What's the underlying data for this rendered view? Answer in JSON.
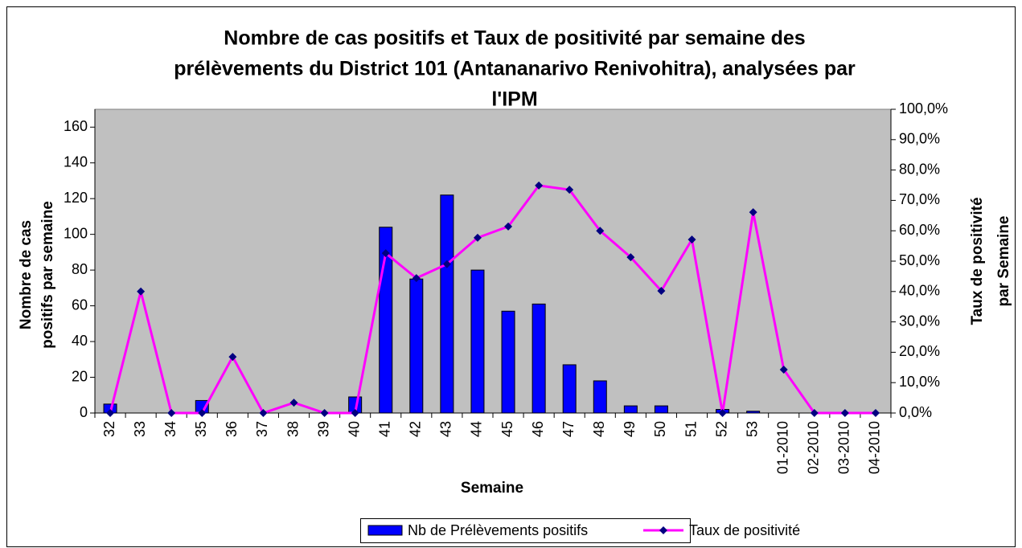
{
  "chart_data": {
    "type": "bar_line",
    "title": [
      "Nombre de cas positifs et Taux de positivité par semaine des",
      "prélèvements du District 101 (Antananarivo Renivohitra), analysées par",
      "l'IPM"
    ],
    "x_label": "Semaine",
    "y_label": [
      "Nombre de cas",
      "positifs par semaine"
    ],
    "y2_label": [
      "Taux de positivité",
      "par Semaine"
    ],
    "categories": [
      "32",
      "33",
      "34",
      "35",
      "36",
      "37",
      "38",
      "39",
      "40",
      "41",
      "42",
      "43",
      "44",
      "45",
      "46",
      "47",
      "48",
      "49",
      "50",
      "51",
      "52",
      "53",
      "01-2010",
      "02-2010",
      "03-2010",
      "04-2010"
    ],
    "series": [
      {
        "name": "Nb de Prélèvements positifs",
        "type": "bar",
        "color": "#0000ff",
        "values": [
          5,
          0,
          0,
          7,
          0,
          0,
          0,
          0,
          9,
          104,
          75,
          122,
          80,
          57,
          61,
          27,
          18,
          4,
          4,
          0,
          2,
          1,
          0,
          0,
          0,
          0
        ]
      },
      {
        "name": "Taux de positivité",
        "type": "line",
        "color": "#ff00ff",
        "marker_color": "#000080",
        "axis": "y2",
        "values": [
          0,
          40,
          0,
          0,
          18.5,
          0,
          3.4,
          0,
          0,
          52.6,
          44.4,
          49,
          57.7,
          61.4,
          74.9,
          73.5,
          60,
          51.3,
          40.2,
          57.1,
          0,
          66.1,
          14.3,
          0,
          0,
          0
        ]
      }
    ],
    "ylim": [
      0,
      170
    ],
    "yticks": [
      0,
      20,
      40,
      60,
      80,
      100,
      120,
      140,
      160
    ],
    "y2lim": [
      0,
      100
    ],
    "y2ticks": [
      {
        "value": 0,
        "label": "0,0%"
      },
      {
        "value": 10,
        "label": "10,0%"
      },
      {
        "value": 20,
        "label": "20,0%"
      },
      {
        "value": 30,
        "label": "30,0%"
      },
      {
        "value": 40,
        "label": "40,0%"
      },
      {
        "value": 50,
        "label": "50,0%"
      },
      {
        "value": 60,
        "label": "60,0%"
      },
      {
        "value": 70,
        "label": "70,0%"
      },
      {
        "value": 80,
        "label": "80,0%"
      },
      {
        "value": 90,
        "label": "90,0%"
      },
      {
        "value": 100,
        "label": "100,0%"
      }
    ],
    "plot_background": "#c0c0c0",
    "grid": false,
    "legend": "bottom"
  }
}
